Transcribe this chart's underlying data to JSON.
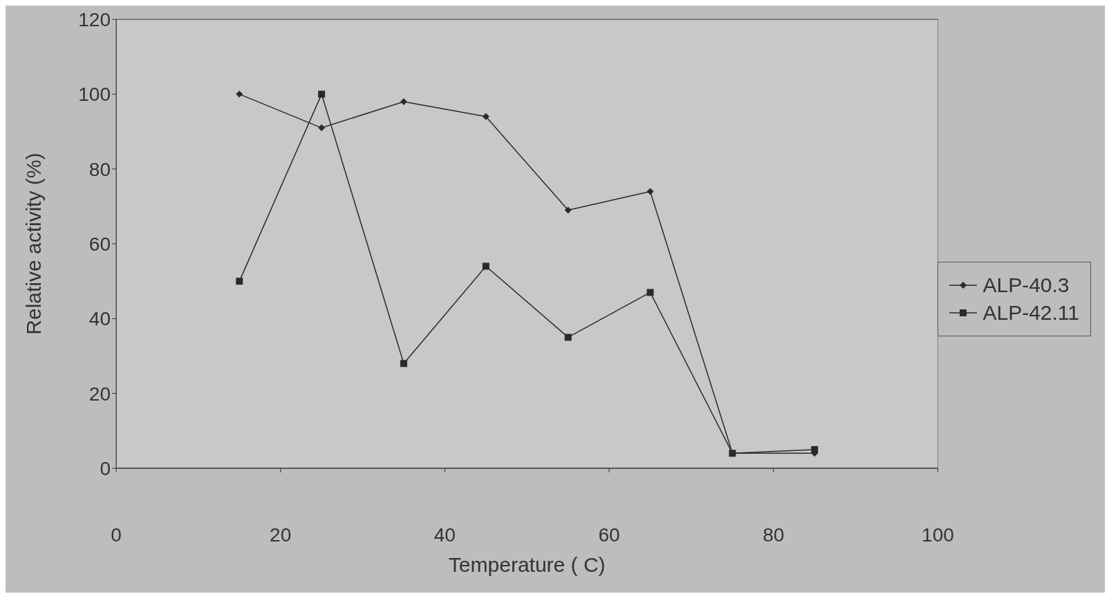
{
  "chart_data": {
    "type": "line",
    "xlabel": "Temperature ( C)",
    "ylabel": "Relative activity (%)",
    "x": [
      15,
      25,
      35,
      45,
      55,
      65,
      75,
      85
    ],
    "series": [
      {
        "name": "ALP-40.3",
        "color": "#2a2a2a",
        "marker": "diamond",
        "values": [
          100,
          91,
          98,
          94,
          69,
          74,
          4,
          4
        ]
      },
      {
        "name": "ALP-42.11",
        "color": "#2a2a2a",
        "marker": "square",
        "values": [
          50,
          100,
          28,
          54,
          35,
          47,
          4,
          5
        ]
      }
    ],
    "xlim": [
      0,
      100
    ],
    "xticks": [
      0,
      20,
      40,
      60,
      80,
      100
    ],
    "ylim": [
      0,
      120
    ],
    "yticks": [
      0,
      20,
      40,
      60,
      80,
      100,
      120
    ],
    "grid": "y",
    "legend": "right",
    "line_style": "solid"
  }
}
